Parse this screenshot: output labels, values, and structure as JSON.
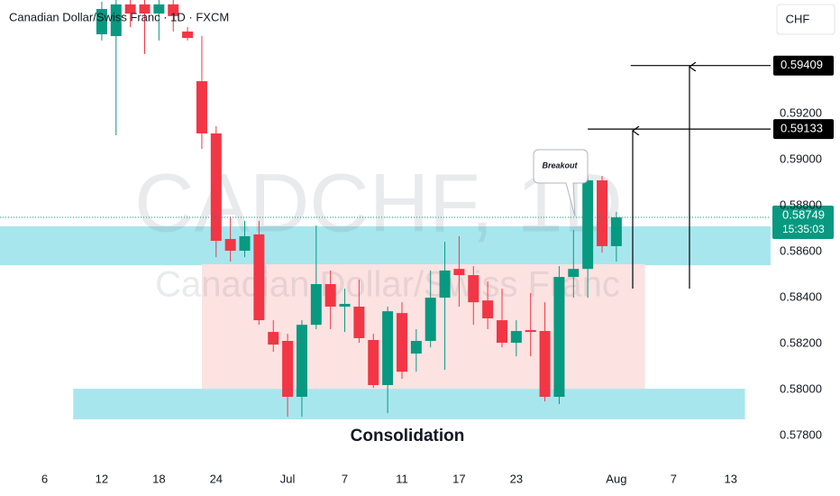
{
  "chart_data": {
    "type": "candlestick",
    "title": "Canadian Dollar/Swiss Franc · 1D · FXCM",
    "currency": "CHF",
    "watermark": {
      "symbol": "CADCHF, 1D",
      "description": "Canadian Dollar/Swiss Franc"
    },
    "up_color": "#089981",
    "down_color": "#f23645",
    "open": [
      0.59545,
      0.59537,
      0.59675,
      0.59675,
      0.59635,
      0.59675,
      0.59557,
      0.59341,
      0.59114,
      0.58655,
      0.58604,
      0.58675,
      0.58251,
      0.58212,
      0.57969,
      0.58282,
      0.58459,
      0.58361,
      0.58361,
      0.58216,
      0.5802,
      0.58333,
      0.58157,
      0.58212,
      0.584,
      0.58525,
      0.58498,
      0.58388,
      0.58302,
      0.58204,
      0.58259,
      0.58255,
      0.57969,
      0.5849,
      0.58525,
      0.5891,
      0.58624
    ],
    "high": [
      0.59686,
      0.59694,
      0.59694,
      0.59694,
      0.59694,
      0.59694,
      0.59576,
      0.59537,
      0.59145,
      0.58753,
      0.58733,
      0.58733,
      0.58302,
      0.58243,
      0.58302,
      0.58714,
      0.58518,
      0.58439,
      0.58478,
      0.58243,
      0.58361,
      0.5838,
      0.58263,
      0.58518,
      0.58643,
      0.58667,
      0.58537,
      0.58471,
      0.58439,
      0.58302,
      0.5842,
      0.5838,
      0.58537,
      0.58694,
      0.58929,
      0.58929,
      0.58773
    ],
    "low": [
      0.59518,
      0.59106,
      0.59576,
      0.59459,
      0.59518,
      0.59557,
      0.59518,
      0.59047,
      0.58576,
      0.58557,
      0.58576,
      0.58282,
      0.58165,
      0.57882,
      0.57882,
      0.58263,
      0.58263,
      0.58251,
      0.58204,
      0.58008,
      0.57898,
      0.58047,
      0.58078,
      0.58184,
      0.58086,
      0.58361,
      0.58282,
      0.58263,
      0.58184,
      0.58145,
      0.58145,
      0.57949,
      0.57937,
      0.584,
      0.584,
      0.58596,
      0.58557
    ],
    "close": [
      0.59655,
      0.59675,
      0.59635,
      0.59635,
      0.59675,
      0.59624,
      0.59529,
      0.59114,
      0.58647,
      0.58604,
      0.58667,
      0.58302,
      0.58196,
      0.57969,
      0.58282,
      0.58459,
      0.58361,
      0.58373,
      0.58224,
      0.5802,
      0.58341,
      0.58078,
      0.58212,
      0.584,
      0.58518,
      0.58498,
      0.5838,
      0.5831,
      0.58204,
      0.58255,
      0.58251,
      0.57969,
      0.5849,
      0.58525,
      0.5891,
      0.58624,
      0.58749
    ],
    "xlim": [
      -7.12,
      46.79
    ],
    "xticks": [
      {
        "value": -4,
        "label": "6"
      },
      {
        "value": 0,
        "label": "12"
      },
      {
        "value": 4,
        "label": "18"
      },
      {
        "value": 8,
        "label": "24"
      },
      {
        "value": 13,
        "label": "Jul"
      },
      {
        "value": 17,
        "label": "7"
      },
      {
        "value": 21,
        "label": "11"
      },
      {
        "value": 25,
        "label": "17"
      },
      {
        "value": 29,
        "label": "23"
      },
      {
        "value": 36,
        "label": "Aug"
      },
      {
        "value": 40,
        "label": "7"
      },
      {
        "value": 44,
        "label": "13"
      }
    ],
    "ylim": [
      0.57675,
      0.59694
    ],
    "yticks": [
      {
        "value": 0.578,
        "label": "0.57800"
      },
      {
        "value": 0.58,
        "label": "0.58000"
      },
      {
        "value": 0.582,
        "label": "0.58200"
      },
      {
        "value": 0.584,
        "label": "0.58400"
      },
      {
        "value": 0.586,
        "label": "0.58600"
      },
      {
        "value": 0.588,
        "label": "0.58800"
      },
      {
        "value": 0.59,
        "label": "0.59000"
      },
      {
        "value": 0.592,
        "label": "0.59200"
      }
    ],
    "last_price": 0.58749,
    "countdown": "15:35:03",
    "targets": [
      {
        "value": 0.59409,
        "from": 37
      },
      {
        "value": 0.59133,
        "from": 34
      }
    ],
    "zones": [
      {
        "color": "#a8e6ee",
        "y": [
          0.58541,
          0.5871
        ]
      },
      {
        "color": "#a8e6ee",
        "y": [
          0.57871,
          0.58004
        ],
        "x": [
          -2,
          45
        ]
      },
      {
        "color": "#fde2e2",
        "y": [
          0.58004,
          0.58545
        ],
        "x": [
          7,
          38
        ]
      }
    ],
    "annotations": {
      "breakout": "Breakout",
      "consolidation": "Consolidation"
    }
  }
}
